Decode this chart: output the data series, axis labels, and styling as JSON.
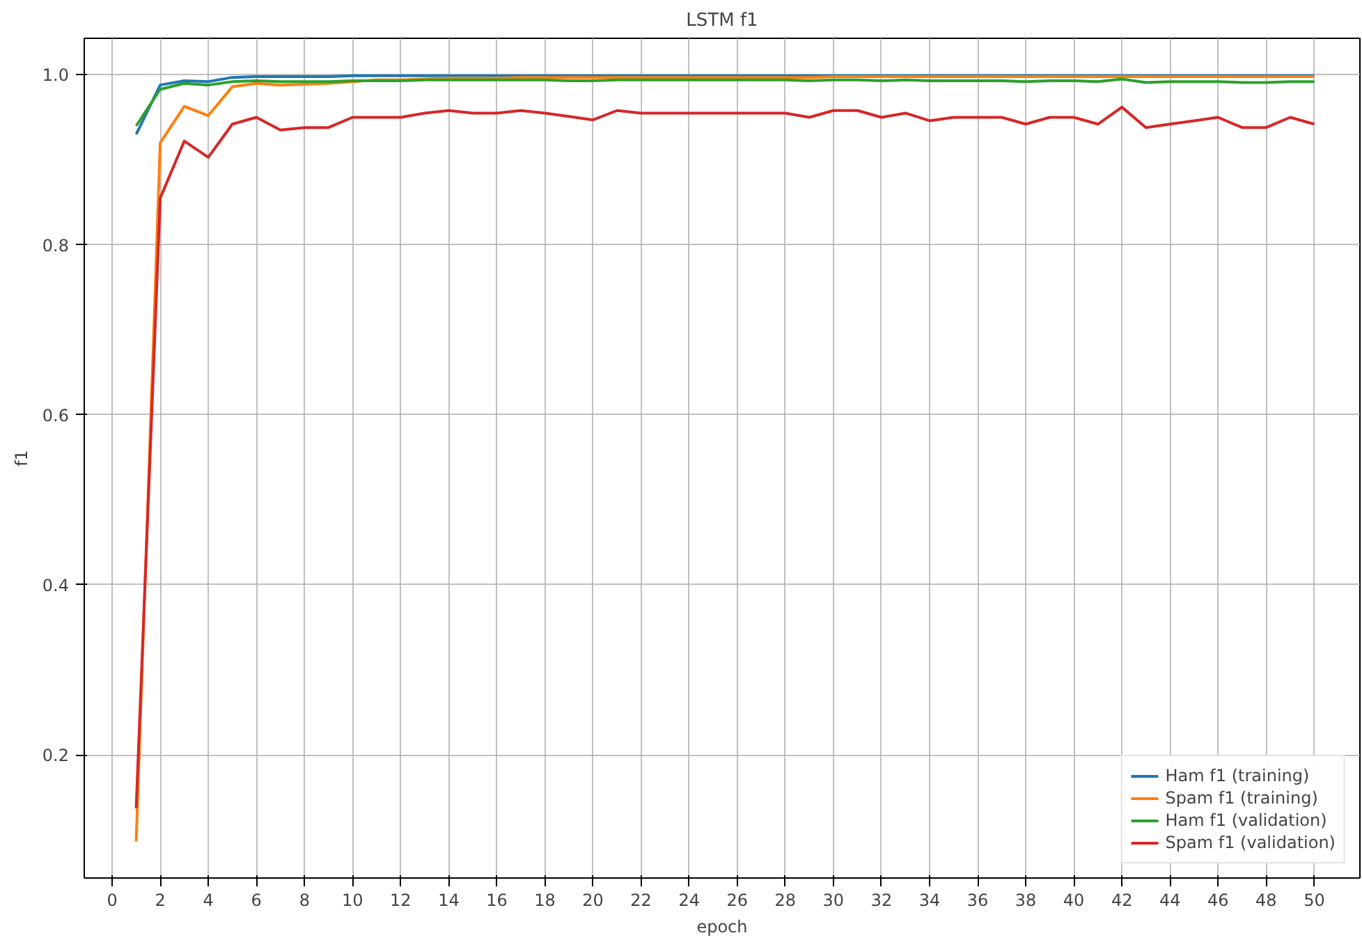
{
  "chart_data": {
    "type": "line",
    "title": "LSTM f1",
    "xlabel": "epoch",
    "ylabel": "f1",
    "x": [
      1,
      2,
      3,
      4,
      5,
      6,
      7,
      8,
      9,
      10,
      11,
      12,
      13,
      14,
      15,
      16,
      17,
      18,
      19,
      20,
      21,
      22,
      23,
      24,
      25,
      26,
      27,
      28,
      29,
      30,
      31,
      32,
      33,
      34,
      35,
      36,
      37,
      38,
      39,
      40,
      41,
      42,
      43,
      44,
      45,
      46,
      47,
      48,
      49,
      50
    ],
    "series": [
      {
        "name": "Ham f1 (training)",
        "color": "#1f77b4",
        "values": [
          0.93,
          0.988,
          0.993,
          0.992,
          0.997,
          0.998,
          0.998,
          0.998,
          0.998,
          0.999,
          0.999,
          0.999,
          0.999,
          0.999,
          0.999,
          0.999,
          0.999,
          0.999,
          0.999,
          0.999,
          0.999,
          0.999,
          0.999,
          0.999,
          0.999,
          0.999,
          0.999,
          0.999,
          0.999,
          0.999,
          0.999,
          0.999,
          0.999,
          0.999,
          0.999,
          0.999,
          0.999,
          0.999,
          0.999,
          0.999,
          0.999,
          0.999,
          0.999,
          0.999,
          0.999,
          0.999,
          0.999,
          0.999,
          0.999,
          0.999
        ]
      },
      {
        "name": "Spam f1 (training)",
        "color": "#ff7f0e",
        "values": [
          0.098,
          0.92,
          0.963,
          0.952,
          0.986,
          0.99,
          0.988,
          0.989,
          0.99,
          0.992,
          0.994,
          0.994,
          0.995,
          0.996,
          0.996,
          0.996,
          0.997,
          0.997,
          0.997,
          0.997,
          0.997,
          0.997,
          0.997,
          0.997,
          0.997,
          0.997,
          0.997,
          0.997,
          0.997,
          0.998,
          0.998,
          0.998,
          0.998,
          0.998,
          0.998,
          0.998,
          0.998,
          0.998,
          0.998,
          0.998,
          0.998,
          0.998,
          0.998,
          0.998,
          0.998,
          0.998,
          0.998,
          0.998,
          0.998,
          0.998
        ]
      },
      {
        "name": "Ham f1 (validation)",
        "color": "#2ca02c",
        "values": [
          0.94,
          0.983,
          0.99,
          0.988,
          0.992,
          0.993,
          0.992,
          0.992,
          0.992,
          0.993,
          0.993,
          0.993,
          0.994,
          0.994,
          0.994,
          0.994,
          0.994,
          0.994,
          0.993,
          0.993,
          0.994,
          0.994,
          0.994,
          0.994,
          0.994,
          0.994,
          0.994,
          0.994,
          0.993,
          0.994,
          0.994,
          0.993,
          0.994,
          0.993,
          0.993,
          0.993,
          0.993,
          0.992,
          0.993,
          0.993,
          0.992,
          0.995,
          0.991,
          0.992,
          0.992,
          0.992,
          0.991,
          0.991,
          0.992,
          0.992
        ]
      },
      {
        "name": "Spam f1 (validation)",
        "color": "#d62728",
        "values": [
          0.137,
          0.855,
          0.922,
          0.903,
          0.942,
          0.95,
          0.935,
          0.938,
          0.938,
          0.95,
          0.95,
          0.95,
          0.955,
          0.958,
          0.955,
          0.955,
          0.958,
          0.955,
          0.951,
          0.947,
          0.958,
          0.955,
          0.955,
          0.955,
          0.955,
          0.955,
          0.955,
          0.955,
          0.95,
          0.958,
          0.958,
          0.95,
          0.955,
          0.946,
          0.95,
          0.95,
          0.95,
          0.942,
          0.95,
          0.95,
          0.942,
          0.962,
          0.938,
          0.942,
          0.946,
          0.95,
          0.938,
          0.938,
          0.95,
          0.942
        ]
      }
    ],
    "xlim": [
      -1.16,
      51.9
    ],
    "ylim": [
      0.055,
      1.043
    ],
    "xticks": [
      0,
      2,
      4,
      6,
      8,
      10,
      12,
      14,
      16,
      18,
      20,
      22,
      24,
      26,
      28,
      30,
      32,
      34,
      36,
      38,
      40,
      42,
      44,
      46,
      48,
      50
    ],
    "yticks": [
      {
        "value": 0.2,
        "label": "0.2"
      },
      {
        "value": 0.4,
        "label": "0.4"
      },
      {
        "value": 0.6,
        "label": "0.6"
      },
      {
        "value": 0.8,
        "label": "0.8"
      },
      {
        "value": 1.0,
        "label": "1.0"
      }
    ],
    "grid": true,
    "legend": "bottom right",
    "line_style": "solid"
  }
}
